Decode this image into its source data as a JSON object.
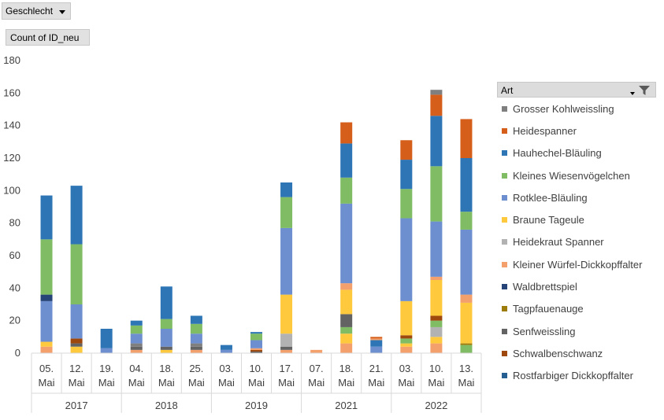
{
  "filter_button": {
    "label": "Geschlecht"
  },
  "value_button": {
    "label": "Count  of ID_neu"
  },
  "legend": {
    "title": "Art",
    "items": [
      {
        "name": "Grosser Kohlweissling",
        "color": "#7f7f7f"
      },
      {
        "name": "Heidespanner",
        "color": "#d55e1a"
      },
      {
        "name": "Hauhechel-Bläuling",
        "color": "#2e75b6"
      },
      {
        "name": "Kleines Wiesenvögelchen",
        "color": "#7fbc64"
      },
      {
        "name": "Rotklee-Bläuling",
        "color": "#6d8fcf"
      },
      {
        "name": "Braune Tageule",
        "color": "#ffc93d"
      },
      {
        "name": "Heidekraut Spanner",
        "color": "#b2b2b2"
      },
      {
        "name": "Kleiner Würfel-Dickkopffalter",
        "color": "#f4a06c"
      },
      {
        "name": "Waldbrettspiel",
        "color": "#264478"
      },
      {
        "name": "Tagpfauenauge",
        "color": "#9c7d0c"
      },
      {
        "name": "Senfweissling",
        "color": "#636363"
      },
      {
        "name": "Schwalbenschwanz",
        "color": "#9e480e"
      },
      {
        "name": "Rostfarbiger Dickkopffalter",
        "color": "#255e91"
      }
    ]
  },
  "chart_data": {
    "type": "bar",
    "stacked": true,
    "ylim": [
      0,
      180
    ],
    "yticks": [
      0,
      20,
      40,
      60,
      80,
      100,
      120,
      140,
      160,
      180
    ],
    "grid": false,
    "legend_position": "right",
    "groups": [
      {
        "year": "2017",
        "dates": [
          "05. Mai",
          "12. Mai",
          "19. Mai"
        ]
      },
      {
        "year": "2018",
        "dates": [
          "04. Mai",
          "18. Mai",
          "25. Mai"
        ]
      },
      {
        "year": "2019",
        "dates": [
          "03. Mai",
          "10. Mai",
          "17. Mai"
        ]
      },
      {
        "year": "2021",
        "dates": [
          "07. Mai",
          "18. Mai",
          "21. Mai"
        ]
      },
      {
        "year": "2022",
        "dates": [
          "03. Mai",
          "10. Mai",
          "13. Mai"
        ]
      }
    ],
    "categories": [
      "05. Mai",
      "12. Mai",
      "19. Mai",
      "04. Mai",
      "18. Mai",
      "25. Mai",
      "03. Mai",
      "10. Mai",
      "17. Mai",
      "07. Mai",
      "18. Mai",
      "21. Mai",
      "03. Mai",
      "10. Mai",
      "13. Mai"
    ],
    "series": [
      {
        "name": "Rostfarbiger Dickkopffalter",
        "values": [
          0,
          0,
          0,
          0,
          0,
          0,
          0,
          0,
          0,
          0,
          0,
          0,
          0,
          0,
          0
        ]
      },
      {
        "name": "Schwalbenschwanz",
        "values": [
          0,
          0,
          0,
          0,
          0,
          0,
          0,
          0,
          0,
          0,
          0,
          0,
          0,
          0,
          0
        ]
      },
      {
        "name": "Kleiner Würfel-Dickkopffalter",
        "values": [
          4,
          0,
          0,
          2,
          0,
          2,
          0,
          0,
          2,
          0,
          6,
          0,
          4,
          6,
          0
        ]
      },
      {
        "name": "Braune Tageule",
        "values": [
          3,
          4,
          0,
          0,
          2,
          0,
          0,
          0,
          0,
          0,
          6,
          0,
          2,
          4,
          0
        ]
      },
      {
        "name": "Heidekraut Spanner",
        "values": [
          0,
          0,
          0,
          0,
          0,
          0,
          0,
          0,
          0,
          0,
          0,
          0,
          0,
          6,
          0
        ]
      },
      {
        "name": "Kleines Wiesenvögelchen",
        "values": [
          0,
          0,
          0,
          0,
          0,
          0,
          0,
          0,
          0,
          0,
          4,
          0,
          3,
          4,
          5
        ]
      },
      {
        "name": "Tagpfauenauge",
        "values": [
          0,
          0,
          0,
          0,
          0,
          0,
          0,
          0,
          0,
          0,
          0,
          0,
          0,
          0,
          1
        ]
      },
      {
        "name": "Waldbrettspiel",
        "values": [
          0,
          0,
          0,
          0,
          0,
          0,
          0,
          0,
          0,
          0,
          0,
          0,
          0,
          0,
          0
        ]
      },
      {
        "name": "Senfweissling",
        "values": [
          0,
          2,
          0,
          2,
          2,
          2,
          0,
          1,
          2,
          0,
          0,
          0,
          0,
          0,
          0
        ]
      },
      {
        "name": "Grosser Kohlweissling",
        "values": [
          0,
          0,
          0,
          2,
          0,
          2,
          0,
          0,
          0,
          0,
          0,
          0,
          0,
          0,
          0
        ]
      },
      {
        "name": "Schwalbenschwanz",
        "values": [
          0,
          3,
          0,
          0,
          0,
          0,
          0,
          1,
          0,
          0,
          0,
          0,
          2,
          3,
          0
        ]
      },
      {
        "name": "Kleiner Würfel-Dickkopffalter",
        "values": [
          0,
          0,
          0,
          0,
          0,
          0,
          0,
          1,
          0,
          2,
          0,
          0,
          0,
          0,
          0
        ]
      },
      {
        "name": "Senfweissling",
        "values": [
          0,
          0,
          0,
          0,
          0,
          0,
          0,
          0,
          0,
          0,
          8,
          0,
          0,
          0,
          0
        ]
      },
      {
        "name": "Heidekraut Spanner",
        "values": [
          0,
          0,
          0,
          0,
          0,
          0,
          0,
          0,
          8,
          0,
          0,
          0,
          0,
          0,
          0
        ]
      },
      {
        "name": "Braune Tageule",
        "values": [
          0,
          0,
          0,
          0,
          0,
          0,
          0,
          0,
          24,
          0,
          15,
          0,
          21,
          22,
          25
        ]
      },
      {
        "name": "Kleiner Würfel-Dickkopffalter",
        "values": [
          0,
          0,
          0,
          0,
          0,
          0,
          0,
          0,
          0,
          0,
          4,
          0,
          0,
          2,
          5
        ]
      },
      {
        "name": "Rotklee-Bläuling",
        "values": [
          25,
          21,
          3,
          6,
          11,
          6,
          2,
          5,
          41,
          0,
          49,
          4,
          51,
          34,
          40
        ]
      },
      {
        "name": "Waldbrettspiel",
        "values": [
          4,
          0,
          0,
          0,
          0,
          0,
          0,
          0,
          0,
          0,
          0,
          0,
          0,
          0,
          0
        ]
      },
      {
        "name": "Kleines Wiesenvögelchen",
        "values": [
          34,
          37,
          0,
          5,
          6,
          6,
          0,
          4,
          19,
          0,
          16,
          0,
          18,
          34,
          11
        ]
      },
      {
        "name": "Hauhechel-Bläuling",
        "values": [
          27,
          36,
          12,
          3,
          20,
          5,
          3,
          1,
          9,
          0,
          21,
          4,
          18,
          31,
          33
        ]
      },
      {
        "name": "Kleiner Würfel-Dickkopffalter",
        "values": [
          0,
          0,
          0,
          0,
          0,
          0,
          0,
          0,
          0,
          0,
          0,
          1,
          0,
          0,
          0
        ]
      },
      {
        "name": "Heidespanner",
        "values": [
          0,
          0,
          0,
          0,
          0,
          0,
          0,
          0,
          0,
          0,
          13,
          1,
          12,
          13,
          24
        ]
      },
      {
        "name": "Grosser Kohlweissling",
        "values": [
          0,
          0,
          0,
          0,
          0,
          0,
          0,
          0,
          0,
          0,
          0,
          0,
          0,
          3,
          0
        ]
      }
    ],
    "series_colors": [
      "#255e91",
      "#9e480e",
      "#f4a06c",
      "#ffc93d",
      "#b2b2b2",
      "#7fbc64",
      "#9c7d0c",
      "#264478",
      "#636363",
      "#7f7f7f",
      "#9e480e",
      "#f4a06c",
      "#636363",
      "#b2b2b2",
      "#ffc93d",
      "#f4a06c",
      "#6d8fcf",
      "#264478",
      "#7fbc64",
      "#2e75b6",
      "#f4a06c",
      "#d55e1a",
      "#7f7f7f"
    ]
  }
}
